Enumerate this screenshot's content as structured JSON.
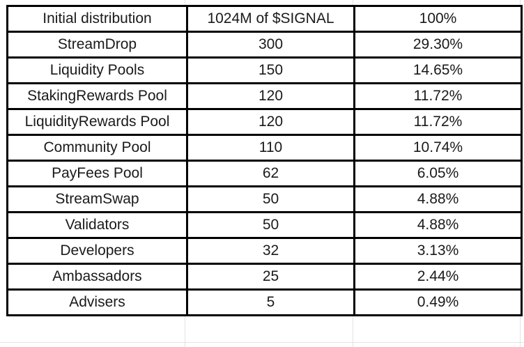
{
  "table": {
    "rows": [
      [
        "Initial distribution",
        "1024M of $SIGNAL",
        "100%"
      ],
      [
        "StreamDrop",
        "300",
        "29.30%"
      ],
      [
        "Liquidity Pools",
        "150",
        "14.65%"
      ],
      [
        "StakingRewards Pool",
        "120",
        "11.72%"
      ],
      [
        "LiquidityRewards Pool",
        "120",
        "11.72%"
      ],
      [
        "Community Pool",
        "110",
        "10.74%"
      ],
      [
        "PayFees Pool",
        "62",
        "6.05%"
      ],
      [
        "StreamSwap",
        "50",
        "4.88%"
      ],
      [
        "Validators",
        "50",
        "4.88%"
      ],
      [
        "Developers",
        "32",
        "3.13%"
      ],
      [
        "Ambassadors",
        "25",
        "2.44%"
      ],
      [
        "Advisers",
        "5",
        "0.49%"
      ]
    ]
  }
}
